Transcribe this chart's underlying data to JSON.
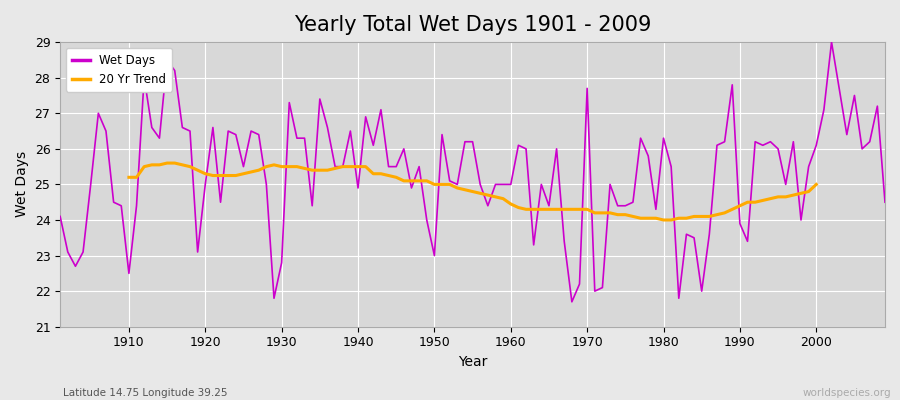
{
  "title": "Yearly Total Wet Days 1901 - 2009",
  "xlabel": "Year",
  "ylabel": "Wet Days",
  "subtitle": "Latitude 14.75 Longitude 39.25",
  "watermark": "worldspecies.org",
  "years": [
    1901,
    1902,
    1903,
    1904,
    1905,
    1906,
    1907,
    1908,
    1909,
    1910,
    1911,
    1912,
    1913,
    1914,
    1915,
    1916,
    1917,
    1918,
    1919,
    1920,
    1921,
    1922,
    1923,
    1924,
    1925,
    1926,
    1927,
    1928,
    1929,
    1930,
    1931,
    1932,
    1933,
    1934,
    1935,
    1936,
    1937,
    1938,
    1939,
    1940,
    1941,
    1942,
    1943,
    1944,
    1945,
    1946,
    1947,
    1948,
    1949,
    1950,
    1951,
    1952,
    1953,
    1954,
    1955,
    1956,
    1957,
    1958,
    1959,
    1960,
    1961,
    1962,
    1963,
    1964,
    1965,
    1966,
    1967,
    1968,
    1969,
    1970,
    1971,
    1972,
    1973,
    1974,
    1975,
    1976,
    1977,
    1978,
    1979,
    1980,
    1981,
    1982,
    1983,
    1984,
    1985,
    1986,
    1987,
    1988,
    1989,
    1990,
    1991,
    1992,
    1993,
    1994,
    1995,
    1996,
    1997,
    1998,
    1999,
    2000,
    2001,
    2002,
    2003,
    2004,
    2005,
    2006,
    2007,
    2008,
    2009
  ],
  "wet_days": [
    24.1,
    23.1,
    22.7,
    23.1,
    25.0,
    27.0,
    26.5,
    24.5,
    24.4,
    22.5,
    24.4,
    28.0,
    26.6,
    26.3,
    28.5,
    28.2,
    26.6,
    26.5,
    23.1,
    25.0,
    26.6,
    24.5,
    26.5,
    26.4,
    25.5,
    26.5,
    26.4,
    25.0,
    21.8,
    22.8,
    27.3,
    26.3,
    26.3,
    24.4,
    27.4,
    26.6,
    25.5,
    25.5,
    26.5,
    24.9,
    26.9,
    26.1,
    27.1,
    25.5,
    25.5,
    26.0,
    24.9,
    25.5,
    24.0,
    23.0,
    26.4,
    25.1,
    25.0,
    26.2,
    26.2,
    25.0,
    24.4,
    25.0,
    25.0,
    25.0,
    26.1,
    26.0,
    23.3,
    25.0,
    24.4,
    26.0,
    23.4,
    21.7,
    22.2,
    27.7,
    22.0,
    22.1,
    25.0,
    24.4,
    24.4,
    24.5,
    26.3,
    25.8,
    24.3,
    26.3,
    25.5,
    21.8,
    23.6,
    23.5,
    22.0,
    23.6,
    26.1,
    26.2,
    27.8,
    23.9,
    23.4,
    26.2,
    26.1,
    26.2,
    26.0,
    25.0,
    26.2,
    24.0,
    25.5,
    26.1,
    27.1,
    29.0,
    27.7,
    26.4,
    27.5,
    26.0,
    26.2,
    27.2,
    24.5
  ],
  "trend_years": [
    1910,
    1911,
    1912,
    1913,
    1914,
    1915,
    1916,
    1917,
    1918,
    1919,
    1920,
    1921,
    1922,
    1923,
    1924,
    1925,
    1926,
    1927,
    1928,
    1929,
    1930,
    1931,
    1932,
    1933,
    1934,
    1935,
    1936,
    1937,
    1938,
    1939,
    1940,
    1941,
    1942,
    1943,
    1944,
    1945,
    1946,
    1947,
    1948,
    1949,
    1950,
    1951,
    1952,
    1953,
    1954,
    1955,
    1956,
    1957,
    1958,
    1959,
    1960,
    1961,
    1962,
    1963,
    1964,
    1965,
    1966,
    1967,
    1968,
    1969,
    1970,
    1971,
    1972,
    1973,
    1974,
    1975,
    1976,
    1977,
    1978,
    1979,
    1980,
    1981,
    1982,
    1983,
    1984,
    1985,
    1986,
    1987,
    1988,
    1989,
    1990,
    1991,
    1992,
    1993,
    1994,
    1995,
    1996,
    1997,
    1998,
    1999,
    2000
  ],
  "trend_values": [
    25.2,
    25.2,
    25.5,
    25.55,
    25.55,
    25.6,
    25.6,
    25.55,
    25.5,
    25.4,
    25.3,
    25.25,
    25.25,
    25.25,
    25.25,
    25.3,
    25.35,
    25.4,
    25.5,
    25.55,
    25.5,
    25.5,
    25.5,
    25.45,
    25.4,
    25.4,
    25.4,
    25.45,
    25.5,
    25.5,
    25.5,
    25.5,
    25.3,
    25.3,
    25.25,
    25.2,
    25.1,
    25.1,
    25.1,
    25.1,
    25.0,
    25.0,
    25.0,
    24.9,
    24.85,
    24.8,
    24.75,
    24.7,
    24.65,
    24.6,
    24.45,
    24.35,
    24.3,
    24.3,
    24.3,
    24.3,
    24.3,
    24.3,
    24.3,
    24.3,
    24.3,
    24.2,
    24.2,
    24.2,
    24.15,
    24.15,
    24.1,
    24.05,
    24.05,
    24.05,
    24.0,
    24.0,
    24.05,
    24.05,
    24.1,
    24.1,
    24.1,
    24.15,
    24.2,
    24.3,
    24.4,
    24.5,
    24.5,
    24.55,
    24.6,
    24.65,
    24.65,
    24.7,
    24.75,
    24.8,
    25.0
  ],
  "wet_days_color": "#cc00cc",
  "trend_color": "#ffaa00",
  "bg_color": "#e8e8e8",
  "plot_bg_color": "#d8d8d8",
  "ylim": [
    21,
    29
  ],
  "xlim": [
    1901,
    2009
  ],
  "yticks": [
    21,
    22,
    23,
    24,
    25,
    26,
    27,
    28,
    29
  ],
  "xticks": [
    1910,
    1920,
    1930,
    1940,
    1950,
    1960,
    1970,
    1980,
    1990,
    2000
  ],
  "title_fontsize": 15,
  "label_fontsize": 10,
  "tick_fontsize": 9
}
